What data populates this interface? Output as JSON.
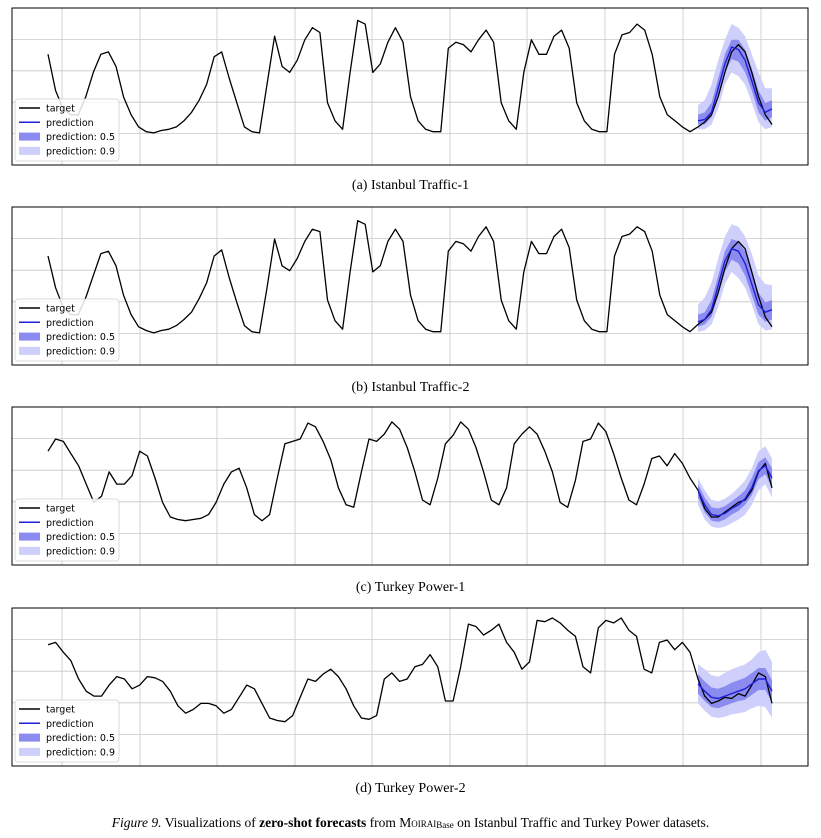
{
  "legend": {
    "target": "target",
    "prediction": "prediction",
    "band50": "prediction: 0.5",
    "band90": "prediction: 0.9"
  },
  "colors": {
    "target": "#000000",
    "prediction": "#1f1fd6",
    "band50": "#8c8cf0",
    "band90": "#cfcffb",
    "grid": "#c8c8c8",
    "frame": "#000000"
  },
  "chart_data": [
    {
      "type": "line",
      "caption": "(a) Istanbul Traffic-1",
      "ylim": [
        0,
        1
      ],
      "grid": true,
      "legend_position": "bottom-left",
      "history": [
        0.7,
        0.4,
        0.25,
        0.2,
        0.2,
        0.35,
        0.55,
        0.7,
        0.72,
        0.6,
        0.35,
        0.2,
        0.1,
        0.06,
        0.05,
        0.07,
        0.08,
        0.1,
        0.15,
        0.22,
        0.32,
        0.45,
        0.68,
        0.72,
        0.5,
        0.3,
        0.1,
        0.06,
        0.05,
        0.45,
        0.85,
        0.6,
        0.55,
        0.65,
        0.82,
        0.92,
        0.88,
        0.3,
        0.15,
        0.08,
        0.55,
        0.98,
        0.95,
        0.55,
        0.62,
        0.8,
        0.92,
        0.8,
        0.35,
        0.15,
        0.08,
        0.06,
        0.06,
        0.75,
        0.8,
        0.78,
        0.72,
        0.82,
        0.9,
        0.8,
        0.3,
        0.15,
        0.08,
        0.55,
        0.82,
        0.7,
        0.7,
        0.85,
        0.9,
        0.75,
        0.3,
        0.15,
        0.08,
        0.06,
        0.06,
        0.7,
        0.86,
        0.88,
        0.95,
        0.9,
        0.7,
        0.35,
        0.2,
        0.15,
        0.1,
        0.06
      ],
      "future_target": [
        0.1,
        0.14,
        0.2,
        0.35,
        0.55,
        0.72,
        0.78,
        0.72,
        0.55,
        0.35,
        0.2,
        0.12
      ],
      "forecast": {
        "median": [
          0.15,
          0.16,
          0.22,
          0.42,
          0.62,
          0.76,
          0.74,
          0.65,
          0.48,
          0.3,
          0.22,
          0.25
        ],
        "q50_lower": [
          0.12,
          0.12,
          0.18,
          0.35,
          0.55,
          0.66,
          0.64,
          0.55,
          0.4,
          0.22,
          0.15,
          0.18
        ],
        "q50_upper": [
          0.2,
          0.22,
          0.3,
          0.5,
          0.7,
          0.82,
          0.82,
          0.74,
          0.58,
          0.4,
          0.3,
          0.32
        ],
        "q90_lower": [
          0.08,
          0.08,
          0.12,
          0.25,
          0.45,
          0.55,
          0.52,
          0.45,
          0.3,
          0.14,
          0.08,
          0.1
        ],
        "q90_upper": [
          0.28,
          0.32,
          0.45,
          0.65,
          0.82,
          0.95,
          0.92,
          0.85,
          0.7,
          0.55,
          0.42,
          0.42
        ]
      }
    },
    {
      "type": "line",
      "caption": "(b) Istanbul Traffic-2",
      "ylim": [
        0,
        1
      ],
      "grid": true,
      "legend_position": "bottom-left",
      "history": [
        0.68,
        0.42,
        0.26,
        0.2,
        0.2,
        0.34,
        0.52,
        0.7,
        0.72,
        0.6,
        0.36,
        0.2,
        0.1,
        0.07,
        0.05,
        0.07,
        0.08,
        0.11,
        0.16,
        0.22,
        0.33,
        0.46,
        0.68,
        0.73,
        0.5,
        0.3,
        0.11,
        0.06,
        0.05,
        0.42,
        0.82,
        0.6,
        0.56,
        0.66,
        0.8,
        0.9,
        0.88,
        0.32,
        0.15,
        0.08,
        0.55,
        0.97,
        0.94,
        0.55,
        0.6,
        0.8,
        0.9,
        0.8,
        0.36,
        0.15,
        0.08,
        0.06,
        0.06,
        0.72,
        0.8,
        0.78,
        0.72,
        0.84,
        0.92,
        0.8,
        0.32,
        0.15,
        0.08,
        0.55,
        0.8,
        0.7,
        0.7,
        0.84,
        0.9,
        0.75,
        0.32,
        0.15,
        0.08,
        0.06,
        0.06,
        0.68,
        0.84,
        0.86,
        0.92,
        0.88,
        0.72,
        0.36,
        0.2,
        0.15,
        0.1,
        0.06
      ],
      "future_target": [
        0.12,
        0.16,
        0.22,
        0.38,
        0.58,
        0.74,
        0.8,
        0.74,
        0.55,
        0.35,
        0.18,
        0.1
      ],
      "forecast": {
        "median": [
          0.14,
          0.16,
          0.24,
          0.44,
          0.64,
          0.74,
          0.72,
          0.62,
          0.45,
          0.28,
          0.22,
          0.24
        ],
        "q50_lower": [
          0.1,
          0.12,
          0.18,
          0.36,
          0.55,
          0.65,
          0.62,
          0.52,
          0.36,
          0.2,
          0.14,
          0.16
        ],
        "q50_upper": [
          0.2,
          0.22,
          0.32,
          0.52,
          0.72,
          0.82,
          0.8,
          0.72,
          0.55,
          0.38,
          0.3,
          0.32
        ],
        "q90_lower": [
          0.06,
          0.07,
          0.12,
          0.26,
          0.45,
          0.55,
          0.5,
          0.42,
          0.28,
          0.12,
          0.07,
          0.08
        ],
        "q90_upper": [
          0.28,
          0.34,
          0.46,
          0.66,
          0.84,
          0.94,
          0.92,
          0.84,
          0.7,
          0.52,
          0.45,
          0.44
        ]
      }
    },
    {
      "type": "line",
      "caption": "(c) Turkey Power-1",
      "ylim": [
        0,
        1
      ],
      "grid": true,
      "legend_position": "bottom-left",
      "history": [
        0.72,
        0.82,
        0.8,
        0.7,
        0.6,
        0.45,
        0.3,
        0.35,
        0.55,
        0.45,
        0.45,
        0.52,
        0.72,
        0.68,
        0.5,
        0.3,
        0.18,
        0.16,
        0.15,
        0.16,
        0.17,
        0.2,
        0.3,
        0.45,
        0.55,
        0.58,
        0.42,
        0.2,
        0.15,
        0.2,
        0.5,
        0.78,
        0.8,
        0.82,
        0.95,
        0.92,
        0.8,
        0.65,
        0.42,
        0.28,
        0.26,
        0.55,
        0.82,
        0.8,
        0.86,
        0.96,
        0.9,
        0.75,
        0.55,
        0.32,
        0.28,
        0.5,
        0.78,
        0.85,
        0.96,
        0.9,
        0.75,
        0.55,
        0.32,
        0.28,
        0.42,
        0.78,
        0.86,
        0.92,
        0.86,
        0.72,
        0.55,
        0.3,
        0.26,
        0.48,
        0.8,
        0.82,
        0.95,
        0.88,
        0.7,
        0.5,
        0.32,
        0.28,
        0.45,
        0.66,
        0.68,
        0.6,
        0.7,
        0.62,
        0.5
      ],
      "future_target": [
        0.4,
        0.25,
        0.18,
        0.18,
        0.22,
        0.26,
        0.3,
        0.32,
        0.4,
        0.55,
        0.62,
        0.42
      ],
      "forecast": {
        "median": [
          0.4,
          0.28,
          0.2,
          0.19,
          0.21,
          0.25,
          0.28,
          0.33,
          0.42,
          0.56,
          0.6,
          0.5
        ],
        "q50_lower": [
          0.34,
          0.22,
          0.15,
          0.14,
          0.16,
          0.2,
          0.23,
          0.28,
          0.36,
          0.49,
          0.53,
          0.42
        ],
        "q50_upper": [
          0.45,
          0.34,
          0.26,
          0.25,
          0.27,
          0.31,
          0.35,
          0.4,
          0.5,
          0.63,
          0.67,
          0.58
        ],
        "q90_lower": [
          0.28,
          0.16,
          0.1,
          0.09,
          0.1,
          0.13,
          0.16,
          0.2,
          0.28,
          0.4,
          0.45,
          0.34
        ],
        "q90_upper": [
          0.5,
          0.4,
          0.32,
          0.31,
          0.33,
          0.37,
          0.42,
          0.48,
          0.58,
          0.72,
          0.76,
          0.66
        ]
      }
    },
    {
      "type": "line",
      "caption": "(d) Turkey Power-2",
      "ylim": [
        0,
        1
      ],
      "grid": true,
      "legend_position": "bottom-left",
      "history": [
        0.78,
        0.8,
        0.72,
        0.65,
        0.5,
        0.4,
        0.36,
        0.36,
        0.45,
        0.52,
        0.5,
        0.42,
        0.45,
        0.52,
        0.51,
        0.48,
        0.4,
        0.28,
        0.22,
        0.25,
        0.3,
        0.3,
        0.28,
        0.22,
        0.25,
        0.35,
        0.45,
        0.42,
        0.3,
        0.18,
        0.16,
        0.15,
        0.2,
        0.35,
        0.5,
        0.48,
        0.54,
        0.58,
        0.52,
        0.42,
        0.28,
        0.18,
        0.17,
        0.2,
        0.5,
        0.55,
        0.48,
        0.5,
        0.6,
        0.62,
        0.7,
        0.6,
        0.32,
        0.32,
        0.6,
        0.95,
        0.93,
        0.86,
        0.9,
        0.95,
        0.8,
        0.72,
        0.58,
        0.64,
        0.98,
        0.97,
        1.0,
        0.96,
        0.9,
        0.85,
        0.6,
        0.55,
        0.92,
        0.98,
        0.96,
        1.0,
        0.9,
        0.85,
        0.58,
        0.55,
        0.8,
        0.82,
        0.74,
        0.8,
        0.72
      ],
      "future_target": [
        0.5,
        0.36,
        0.3,
        0.32,
        0.35,
        0.34,
        0.38,
        0.36,
        0.45,
        0.55,
        0.52,
        0.3
      ],
      "forecast": {
        "median": [
          0.46,
          0.4,
          0.35,
          0.34,
          0.36,
          0.38,
          0.4,
          0.42,
          0.46,
          0.5,
          0.5,
          0.4
        ],
        "q50_lower": [
          0.38,
          0.32,
          0.27,
          0.26,
          0.28,
          0.3,
          0.32,
          0.33,
          0.37,
          0.41,
          0.41,
          0.31
        ],
        "q50_upper": [
          0.54,
          0.48,
          0.43,
          0.42,
          0.44,
          0.47,
          0.49,
          0.51,
          0.55,
          0.59,
          0.59,
          0.49
        ],
        "q90_lower": [
          0.3,
          0.24,
          0.19,
          0.18,
          0.19,
          0.21,
          0.22,
          0.23,
          0.26,
          0.28,
          0.27,
          0.18
        ],
        "q90_upper": [
          0.62,
          0.58,
          0.53,
          0.52,
          0.55,
          0.58,
          0.6,
          0.62,
          0.66,
          0.72,
          0.74,
          0.64
        ]
      }
    }
  ],
  "figure_caption": {
    "label": "Figure 9.",
    "pre": "Visualizations of",
    "bold": "zero-shot forecasts",
    "mid": "from",
    "model": "Moirai",
    "model_sub": "Base",
    "post": "on Istanbul Traffic and Turkey Power datasets."
  }
}
